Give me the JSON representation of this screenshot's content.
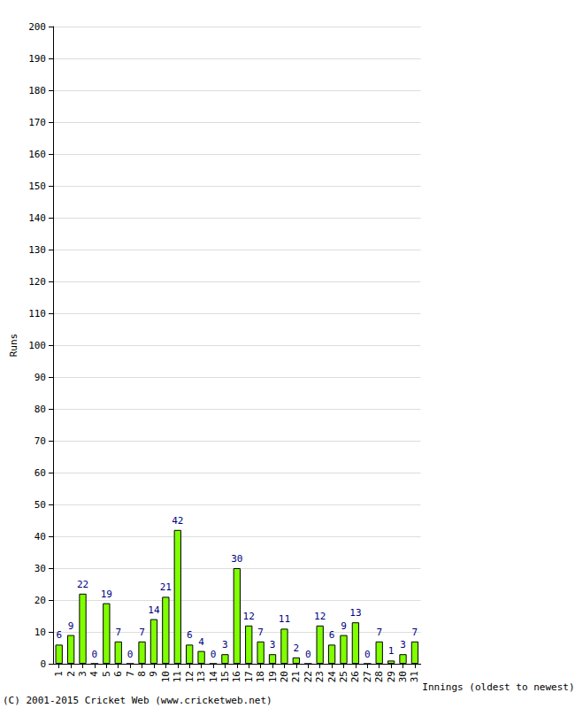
{
  "chart_data": {
    "type": "bar",
    "x_label": "Innings (oldest to newest)",
    "y_label": "Runs",
    "annotations": [
      "(C) 2001-2015 Cricket Web (www.cricketweb.net)"
    ],
    "categories": [
      "1",
      "2",
      "3",
      "4",
      "5",
      "6",
      "7",
      "8",
      "9",
      "10",
      "11",
      "12",
      "13",
      "14",
      "15",
      "16",
      "17",
      "18",
      "19",
      "20",
      "21",
      "22",
      "23",
      "24",
      "25",
      "26",
      "27",
      "28",
      "29",
      "30",
      "31"
    ],
    "values": [
      6,
      9,
      22,
      0,
      19,
      7,
      0,
      7,
      14,
      21,
      42,
      6,
      4,
      0,
      3,
      30,
      12,
      7,
      3,
      11,
      2,
      0,
      12,
      6,
      9,
      13,
      0,
      7,
      1,
      3,
      7
    ],
    "color": "#80ff00",
    "ylim": [
      0,
      200
    ],
    "yticks": [
      0,
      10,
      20,
      30,
      40,
      50,
      60,
      70,
      80,
      90,
      100,
      110,
      120,
      130,
      140,
      150,
      160,
      170,
      180,
      190,
      200
    ],
    "grid": true,
    "data_labels": true
  }
}
